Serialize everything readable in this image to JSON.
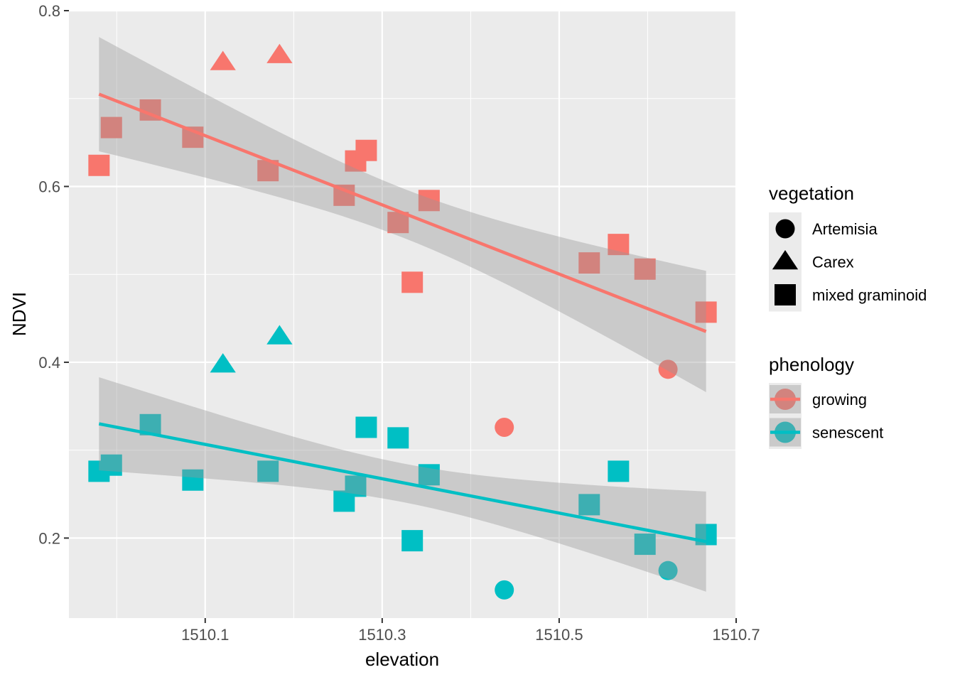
{
  "chart_data": {
    "type": "scatter",
    "xlabel": "elevation",
    "ylabel": "NDVI",
    "xlim": [
      1509.946,
      1510.7
    ],
    "ylim": [
      0.109,
      0.8
    ],
    "x_ticks": [
      1510.1,
      1510.3,
      1510.5,
      1510.7
    ],
    "x_tick_labels": [
      "1510.1",
      "1510.3",
      "1510.5",
      "1510.7"
    ],
    "y_ticks": [
      0.2,
      0.4,
      0.6,
      0.8
    ],
    "y_tick_labels": [
      "0.2",
      "0.4",
      "0.6",
      "0.8"
    ],
    "grid": true,
    "legend_placement": "right",
    "legends": {
      "vegetation": {
        "title": "vegetation",
        "entries": [
          "Artemisia",
          "Carex",
          "mixed graminoid"
        ],
        "shapes": [
          "circle",
          "triangle",
          "square"
        ]
      },
      "phenology": {
        "title": "phenology",
        "entries": [
          "growing",
          "senescent"
        ],
        "colors": [
          "#F8766D",
          "#00BFC4"
        ]
      }
    },
    "series": [
      {
        "name": "growing",
        "color": "#F8766D",
        "points": [
          [
            1509.98,
            0.624,
            "mixed graminoid"
          ],
          [
            1509.994,
            0.667,
            "mixed graminoid"
          ],
          [
            1510.038,
            0.687,
            "mixed graminoid"
          ],
          [
            1510.086,
            0.656,
            "mixed graminoid"
          ],
          [
            1510.12,
            0.741,
            "Carex"
          ],
          [
            1510.184,
            0.749,
            "Carex"
          ],
          [
            1510.171,
            0.618,
            "mixed graminoid"
          ],
          [
            1510.257,
            0.59,
            "mixed graminoid"
          ],
          [
            1510.27,
            0.629,
            "mixed graminoid"
          ],
          [
            1510.282,
            0.641,
            "mixed graminoid"
          ],
          [
            1510.318,
            0.559,
            "mixed graminoid"
          ],
          [
            1510.353,
            0.584,
            "mixed graminoid"
          ],
          [
            1510.334,
            0.491,
            "mixed graminoid"
          ],
          [
            1510.438,
            0.326,
            "Artemisia"
          ],
          [
            1510.534,
            0.513,
            "mixed graminoid"
          ],
          [
            1510.567,
            0.534,
            "mixed graminoid"
          ],
          [
            1510.597,
            0.506,
            "mixed graminoid"
          ],
          [
            1510.623,
            0.392,
            "Artemisia"
          ],
          [
            1510.666,
            0.457,
            "mixed graminoid"
          ]
        ],
        "fit": {
          "x": [
            1509.98,
            1510.666
          ],
          "y": [
            0.705,
            0.435
          ],
          "se_ends": [
            0.065,
            0.069
          ],
          "se_min": 0.028
        }
      },
      {
        "name": "senescent",
        "color": "#00BFC4",
        "points": [
          [
            1509.98,
            0.276,
            "mixed graminoid"
          ],
          [
            1509.994,
            0.283,
            "mixed graminoid"
          ],
          [
            1510.038,
            0.329,
            "mixed graminoid"
          ],
          [
            1510.086,
            0.266,
            "mixed graminoid"
          ],
          [
            1510.12,
            0.397,
            "Carex"
          ],
          [
            1510.184,
            0.429,
            "Carex"
          ],
          [
            1510.171,
            0.276,
            "mixed graminoid"
          ],
          [
            1510.257,
            0.242,
            "mixed graminoid"
          ],
          [
            1510.27,
            0.259,
            "mixed graminoid"
          ],
          [
            1510.282,
            0.326,
            "mixed graminoid"
          ],
          [
            1510.318,
            0.314,
            "mixed graminoid"
          ],
          [
            1510.353,
            0.272,
            "mixed graminoid"
          ],
          [
            1510.334,
            0.197,
            "mixed graminoid"
          ],
          [
            1510.438,
            0.141,
            "Artemisia"
          ],
          [
            1510.534,
            0.238,
            "mixed graminoid"
          ],
          [
            1510.567,
            0.276,
            "mixed graminoid"
          ],
          [
            1510.597,
            0.193,
            "mixed graminoid"
          ],
          [
            1510.623,
            0.163,
            "Artemisia"
          ],
          [
            1510.666,
            0.204,
            "mixed graminoid"
          ]
        ],
        "fit": {
          "x": [
            1509.98,
            1510.666
          ],
          "y": [
            0.33,
            0.196
          ],
          "se_ends": [
            0.053,
            0.057
          ],
          "se_min": 0.022
        }
      }
    ]
  }
}
